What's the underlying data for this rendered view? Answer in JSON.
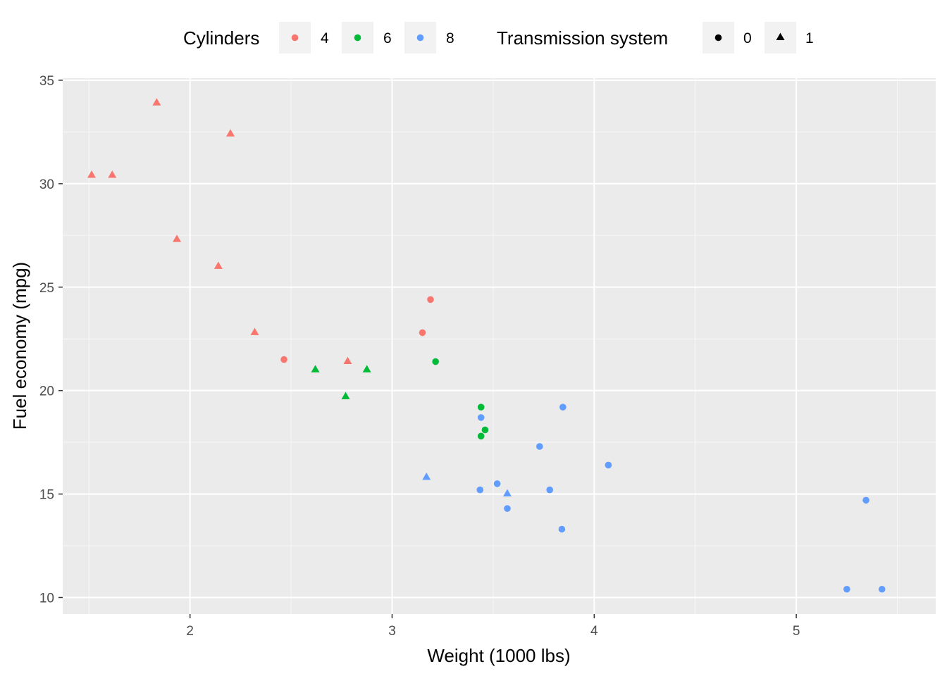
{
  "chart_data": {
    "type": "scatter",
    "xlabel": "Weight (1000 lbs)",
    "ylabel": "Fuel economy (mpg)",
    "xlim": [
      1.37,
      5.69
    ],
    "ylim": [
      9.2,
      35.1
    ],
    "x_ticks": [
      2,
      3,
      4,
      5
    ],
    "y_ticks": [
      10,
      15,
      20,
      25,
      30,
      35
    ],
    "grid": true,
    "legend_position": "top",
    "legend": {
      "color": {
        "title": "Cylinders",
        "entries": [
          {
            "label": "4",
            "color": "#F8766D"
          },
          {
            "label": "6",
            "color": "#00BA38"
          },
          {
            "label": "8",
            "color": "#619CFF"
          }
        ]
      },
      "shape": {
        "title": "Transmission system",
        "entries": [
          {
            "label": "0",
            "shape": "circle"
          },
          {
            "label": "1",
            "shape": "triangle"
          }
        ]
      }
    },
    "points": [
      {
        "x": 2.62,
        "y": 21.0,
        "cyl": "6",
        "am": "1"
      },
      {
        "x": 2.875,
        "y": 21.0,
        "cyl": "6",
        "am": "1"
      },
      {
        "x": 2.32,
        "y": 22.8,
        "cyl": "4",
        "am": "1"
      },
      {
        "x": 3.215,
        "y": 21.4,
        "cyl": "6",
        "am": "0"
      },
      {
        "x": 3.44,
        "y": 18.7,
        "cyl": "8",
        "am": "0"
      },
      {
        "x": 3.46,
        "y": 18.1,
        "cyl": "6",
        "am": "0"
      },
      {
        "x": 3.57,
        "y": 14.3,
        "cyl": "8",
        "am": "0"
      },
      {
        "x": 3.19,
        "y": 24.4,
        "cyl": "4",
        "am": "0"
      },
      {
        "x": 3.15,
        "y": 22.8,
        "cyl": "4",
        "am": "0"
      },
      {
        "x": 3.44,
        "y": 19.2,
        "cyl": "6",
        "am": "0"
      },
      {
        "x": 3.44,
        "y": 17.8,
        "cyl": "6",
        "am": "0"
      },
      {
        "x": 4.07,
        "y": 16.4,
        "cyl": "8",
        "am": "0"
      },
      {
        "x": 3.73,
        "y": 17.3,
        "cyl": "8",
        "am": "0"
      },
      {
        "x": 3.78,
        "y": 15.2,
        "cyl": "8",
        "am": "0"
      },
      {
        "x": 5.25,
        "y": 10.4,
        "cyl": "8",
        "am": "0"
      },
      {
        "x": 5.424,
        "y": 10.4,
        "cyl": "8",
        "am": "0"
      },
      {
        "x": 5.345,
        "y": 14.7,
        "cyl": "8",
        "am": "0"
      },
      {
        "x": 2.2,
        "y": 32.4,
        "cyl": "4",
        "am": "1"
      },
      {
        "x": 1.615,
        "y": 30.4,
        "cyl": "4",
        "am": "1"
      },
      {
        "x": 1.835,
        "y": 33.9,
        "cyl": "4",
        "am": "1"
      },
      {
        "x": 2.465,
        "y": 21.5,
        "cyl": "4",
        "am": "0"
      },
      {
        "x": 3.52,
        "y": 15.5,
        "cyl": "8",
        "am": "0"
      },
      {
        "x": 3.435,
        "y": 15.2,
        "cyl": "8",
        "am": "0"
      },
      {
        "x": 3.84,
        "y": 13.3,
        "cyl": "8",
        "am": "0"
      },
      {
        "x": 3.845,
        "y": 19.2,
        "cyl": "8",
        "am": "0"
      },
      {
        "x": 1.935,
        "y": 27.3,
        "cyl": "4",
        "am": "1"
      },
      {
        "x": 2.14,
        "y": 26.0,
        "cyl": "4",
        "am": "1"
      },
      {
        "x": 1.513,
        "y": 30.4,
        "cyl": "4",
        "am": "1"
      },
      {
        "x": 3.17,
        "y": 15.8,
        "cyl": "8",
        "am": "1"
      },
      {
        "x": 2.77,
        "y": 19.7,
        "cyl": "6",
        "am": "1"
      },
      {
        "x": 3.57,
        "y": 15.0,
        "cyl": "8",
        "am": "1"
      },
      {
        "x": 2.78,
        "y": 21.4,
        "cyl": "4",
        "am": "1"
      }
    ]
  }
}
